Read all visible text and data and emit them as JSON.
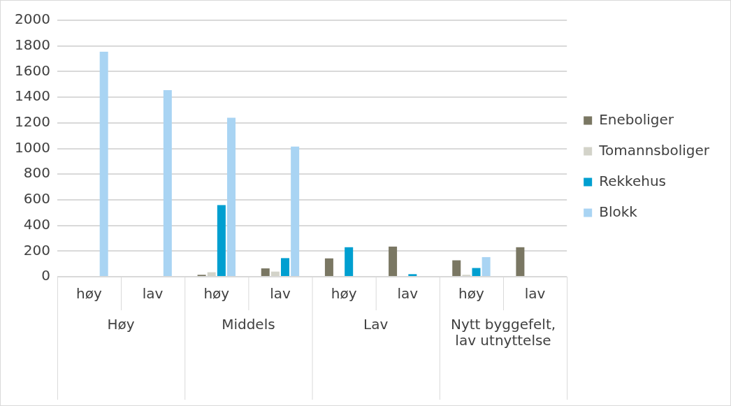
{
  "chart_data": {
    "type": "bar",
    "categories": [
      "høy",
      "lav",
      "høy",
      "lav",
      "høy",
      "lav",
      "høy",
      "lav"
    ],
    "annotations": [
      "Høy",
      "Middels",
      "Lav",
      "Nytt byggefelt, lav utnyttelse"
    ],
    "series": [
      {
        "name": "Eneboliger",
        "color": "#7a7763",
        "values": [
          0,
          0,
          15,
          65,
          143,
          235,
          128,
          230
        ]
      },
      {
        "name": "Tomannsboliger",
        "color": "#d3d3c9",
        "values": [
          0,
          0,
          35,
          40,
          3,
          0,
          15,
          0
        ]
      },
      {
        "name": "Rekkehus",
        "color": "#009fd0",
        "values": [
          0,
          0,
          558,
          145,
          230,
          20,
          68,
          0
        ]
      },
      {
        "name": "Blokk",
        "color": "#a9d4f3",
        "values": [
          1755,
          1455,
          1240,
          1015,
          0,
          0,
          153,
          0
        ]
      }
    ],
    "ylim": [
      0,
      2000
    ],
    "yticks": [
      0,
      200,
      400,
      600,
      800,
      1000,
      1200,
      1400,
      1600,
      1800,
      2000
    ],
    "grid": "y",
    "legend": "right"
  }
}
